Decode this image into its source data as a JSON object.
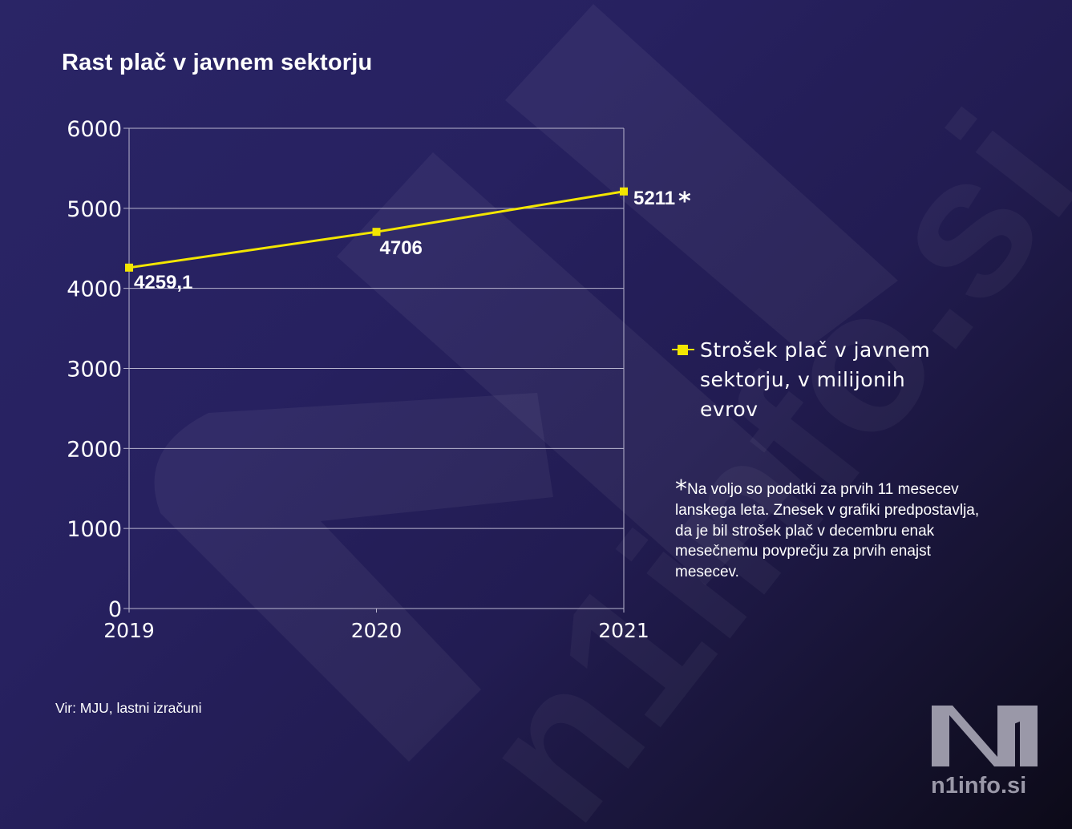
{
  "colors": {
    "line": "#f3e600",
    "grid": "#b9b6cf",
    "text": "#ffffff",
    "logo": "#9a98a8"
  },
  "chart_data": {
    "type": "line",
    "title": "Rast plač v javnem sektorju",
    "categories": [
      "2019",
      "2020",
      "2021"
    ],
    "series": [
      {
        "name": "Strošek plač v javnem sektorju, v milijonih evrov",
        "values": [
          4259.1,
          4706,
          5211
        ],
        "labels": [
          "4259,1",
          "4706",
          "5211"
        ]
      }
    ],
    "yticks": [
      "0",
      "1000",
      "2000",
      "3000",
      "4000",
      "5000",
      "6000"
    ],
    "ylim": [
      0,
      6000
    ],
    "grid": true,
    "legend_position": "right",
    "annotation_marker": "*"
  },
  "legend": {
    "lines": [
      "Strošek plač v javnem",
      "sektorju, v milijonih",
      "evrov"
    ]
  },
  "footnote": {
    "star": "*",
    "text": "Na voljo so podatki za prvih 11 mesecev lanskega leta. Znesek v grafiki predpostavlja, da je bil strošek plač v decembru enak mesečnemu povprečju za prvih enajst mesecev."
  },
  "source": "Vir: MJU, lastni izračuni",
  "logo": {
    "mark": "N1",
    "domain": "n1info.si"
  }
}
